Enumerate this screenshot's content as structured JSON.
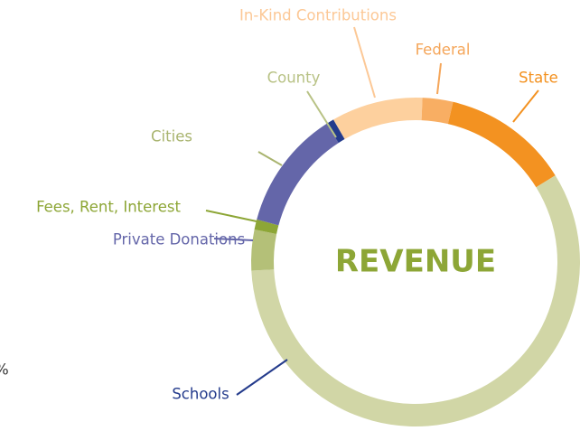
{
  "chart_data": {
    "type": "donut",
    "center_label": "REVENUE",
    "annotation": "%",
    "categories": [
      "In-Kind Contributions",
      "Federal",
      "State",
      "County",
      "Cities",
      "Fees, Rent, Interest",
      "Private Donations",
      "Schools"
    ],
    "values": [
      9,
      3,
      12.5,
      58,
      4,
      1,
      11.7,
      0.8
    ],
    "colors": [
      "#fdd09e",
      "#f8ae63",
      "#f39221",
      "#d1d6a6",
      "#b4c078",
      "#8da636",
      "#6466a9",
      "#243b8c"
    ],
    "label_colors": [
      "#fcc896",
      "#f5a65a",
      "#f39221",
      "#b8c285",
      "#a9b46f",
      "#8da636",
      "#6466a9",
      "#243b8c"
    ]
  }
}
